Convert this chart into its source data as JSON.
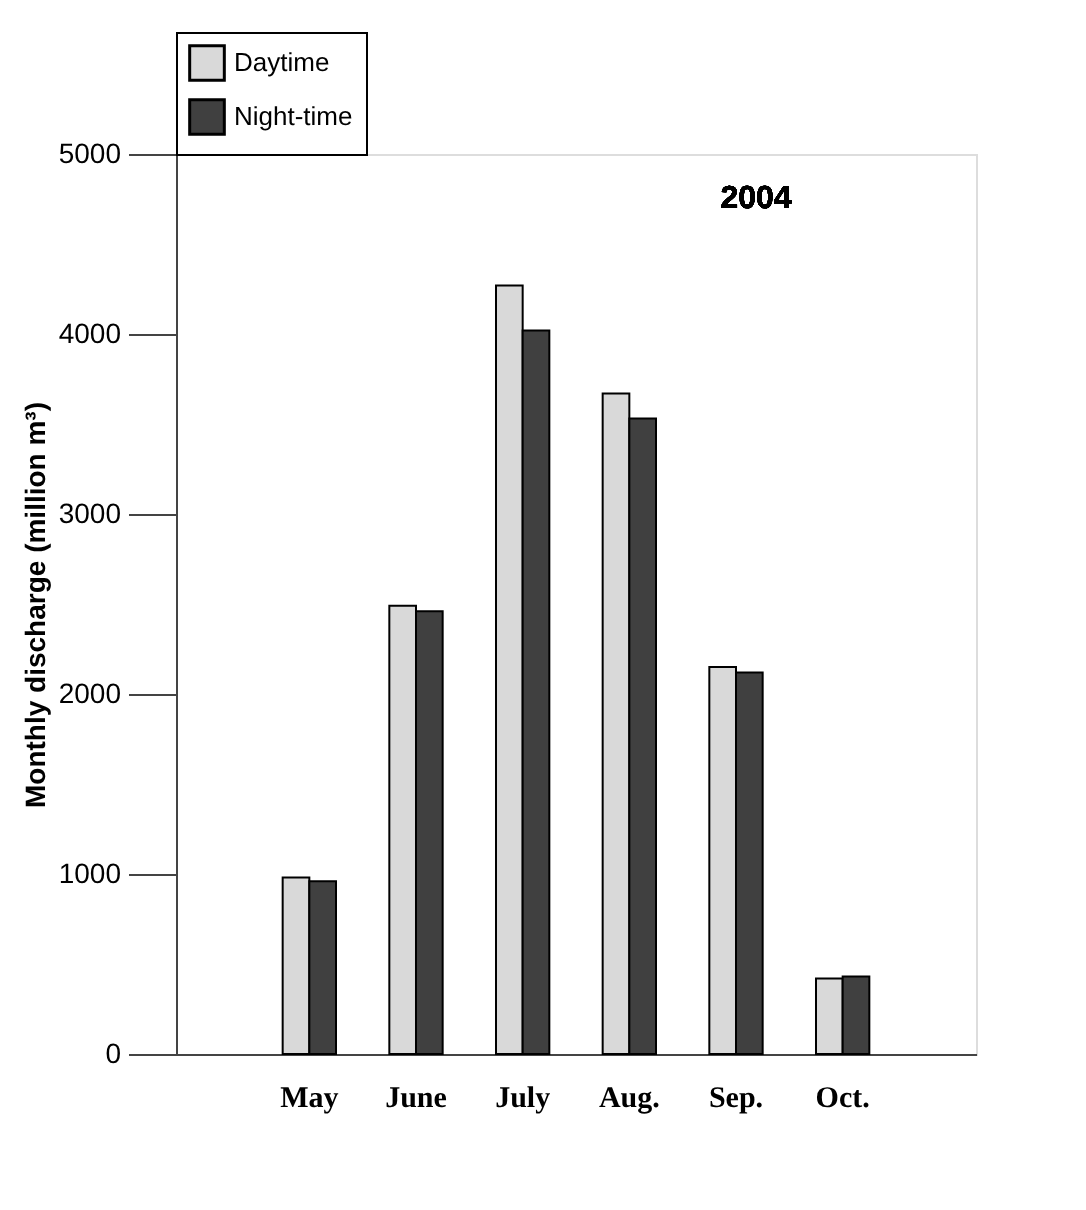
{
  "chart_data": {
    "type": "bar",
    "title": "2004",
    "ylabel": "Monthly discharge (million m³)",
    "categories": [
      "May",
      "June",
      "July",
      "Aug.",
      "Sep.",
      "Oct."
    ],
    "series": [
      {
        "name": "Daytime",
        "color": "#d9d9d9",
        "values": [
          980,
          2490,
          4270,
          3670,
          2150,
          420
        ]
      },
      {
        "name": "Night-time",
        "color": "#404040",
        "values": [
          960,
          2460,
          4020,
          3530,
          2120,
          430
        ]
      }
    ],
    "ylim": [
      0,
      5000
    ],
    "yticks": [
      0,
      1000,
      2000,
      3000,
      4000,
      5000
    ],
    "grid": false,
    "legend": "top"
  }
}
